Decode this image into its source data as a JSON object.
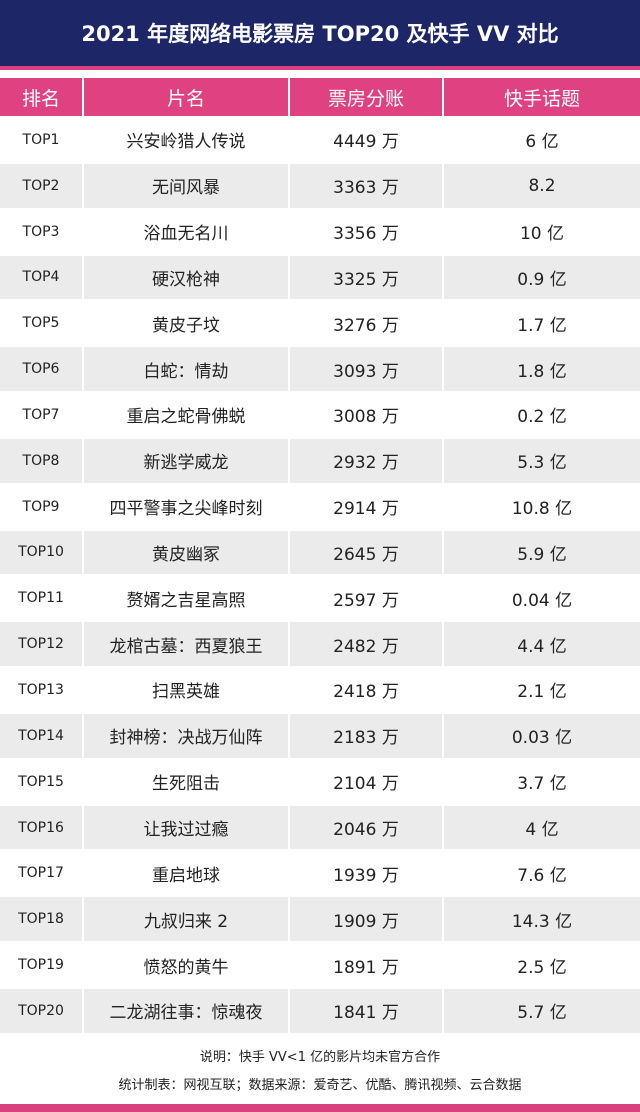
{
  "header": {
    "title": "2021 年度网络电影票房 TOP20 及快手 VV 对比"
  },
  "table": {
    "columns": [
      "排名",
      "片名",
      "票房分账",
      "快手话题"
    ],
    "rows": [
      [
        "TOP1",
        "兴安岭猎人传说",
        "4449 万",
        "6 亿"
      ],
      [
        "TOP2",
        "无间风暴",
        "3363 万",
        "8.2"
      ],
      [
        "TOP3",
        "浴血无名川",
        "3356 万",
        "10 亿"
      ],
      [
        "TOP4",
        "硬汉枪神",
        "3325 万",
        "0.9 亿"
      ],
      [
        "TOP5",
        "黄皮子坟",
        "3276 万",
        "1.7 亿"
      ],
      [
        "TOP6",
        "白蛇：情劫",
        "3093 万",
        "1.8 亿"
      ],
      [
        "TOP7",
        "重启之蛇骨佛蜕",
        "3008 万",
        "0.2 亿"
      ],
      [
        "TOP8",
        "新逃学威龙",
        "2932 万",
        "5.3 亿"
      ],
      [
        "TOP9",
        "四平警事之尖峰时刻",
        "2914 万",
        "10.8 亿"
      ],
      [
        "TOP10",
        "黄皮幽冢",
        "2645 万",
        "5.9 亿"
      ],
      [
        "TOP11",
        "赘婿之吉星高照",
        "2597 万",
        "0.04 亿"
      ],
      [
        "TOP12",
        "龙棺古墓：西夏狼王",
        "2482 万",
        "4.4 亿"
      ],
      [
        "TOP13",
        "扫黑英雄",
        "2418 万",
        "2.1 亿"
      ],
      [
        "TOP14",
        "封神榜：决战万仙阵",
        "2183 万",
        "0.03 亿"
      ],
      [
        "TOP15",
        "生死阻击",
        "2104 万",
        "3.7 亿"
      ],
      [
        "TOP16",
        "让我过过瘾",
        "2046 万",
        "4 亿"
      ],
      [
        "TOP17",
        "重启地球",
        "1939 万",
        "7.6 亿"
      ],
      [
        "TOP18",
        "九叔归来 2",
        "1909 万",
        "14.3 亿"
      ],
      [
        "TOP19",
        "愤怒的黄牛",
        "1891 万",
        "2.5 亿"
      ],
      [
        "TOP20",
        "二龙湖往事：惊魂夜",
        "1841 万",
        "5.7 亿"
      ]
    ]
  },
  "footer": {
    "note": "说明：快手 VV<1 亿的影片均未官方合作",
    "source": "统计制表：网视互联；数据来源：爱奇艺、优酷、腾讯视频、云合数据"
  }
}
